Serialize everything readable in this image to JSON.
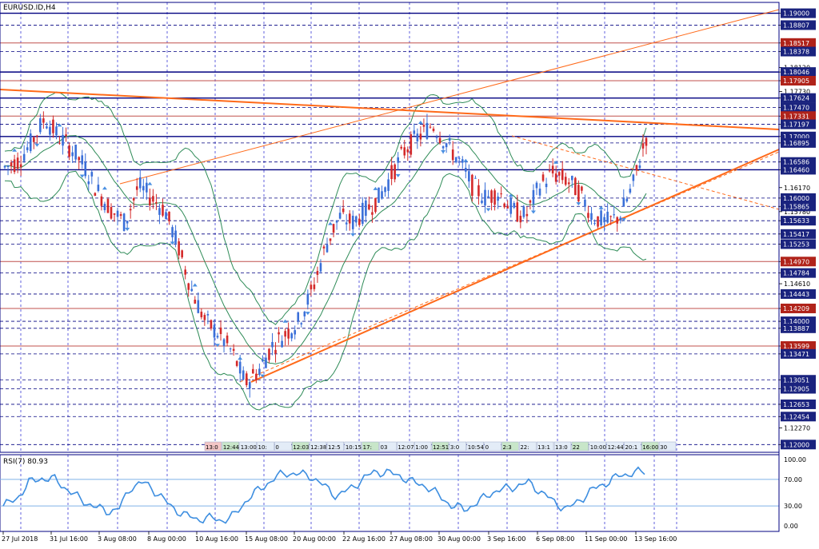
{
  "symbol": "EURUSD.ID,H4",
  "rsi_label": "RSI(7) 80.93",
  "colors": {
    "bull": "#3a6fd8",
    "bear": "#d42a2a",
    "frame": "#000080",
    "grid": "#3b3bd6",
    "band": "#2e8b57",
    "trend": "#ff6a1a",
    "rsi": "#3d8ee0",
    "rsi_level": "#7fb0e6",
    "tag_blue": "#1a237e",
    "tag_red": "#b0231a"
  },
  "price_scale": [
    "1.19000",
    "1.18807",
    "1.18517",
    "1.18378",
    "1.18120",
    "1.18046",
    "1.17905",
    "1.17730",
    "1.17624",
    "1.17470",
    "1.17331",
    "1.17197",
    "1.17000",
    "1.16895",
    "1.16586",
    "1.16460",
    "1.16170",
    "1.16000",
    "1.15865",
    "1.15780",
    "1.15633",
    "1.15417",
    "1.15253",
    "1.14970",
    "1.14784",
    "1.14610",
    "1.14443",
    "1.14209",
    "1.14000",
    "1.13887",
    "1.13599",
    "1.13471",
    "1.13051",
    "1.12905",
    "1.12653",
    "1.12454",
    "1.12270",
    "1.12000"
  ],
  "price_tags": [
    {
      "label": "1.19000",
      "kind": "blue"
    },
    {
      "label": "1.18807",
      "kind": "blue"
    },
    {
      "label": "1.18517",
      "kind": "red"
    },
    {
      "label": "1.18378",
      "kind": "blue"
    },
    {
      "label": "1.18046",
      "kind": "blue"
    },
    {
      "label": "1.17905",
      "kind": "red"
    },
    {
      "label": "1.17624",
      "kind": "blue"
    },
    {
      "label": "1.17470",
      "kind": "blue"
    },
    {
      "label": "1.17331",
      "kind": "red"
    },
    {
      "label": "1.17197",
      "kind": "blue"
    },
    {
      "label": "1.17000",
      "kind": "blue"
    },
    {
      "label": "1.16895",
      "kind": "blue"
    },
    {
      "label": "1.16586",
      "kind": "blue"
    },
    {
      "label": "1.16460",
      "kind": "blue"
    },
    {
      "label": "1.16000",
      "kind": "blue"
    },
    {
      "label": "1.15865",
      "kind": "blue"
    },
    {
      "label": "1.15633",
      "kind": "blue"
    },
    {
      "label": "1.15417",
      "kind": "blue"
    },
    {
      "label": "1.15253",
      "kind": "blue"
    },
    {
      "label": "1.14970",
      "kind": "red"
    },
    {
      "label": "1.14784",
      "kind": "blue"
    },
    {
      "label": "1.14443",
      "kind": "blue"
    },
    {
      "label": "1.14209",
      "kind": "red"
    },
    {
      "label": "1.14000",
      "kind": "blue"
    },
    {
      "label": "1.13887",
      "kind": "blue"
    },
    {
      "label": "1.13599",
      "kind": "red"
    },
    {
      "label": "1.13471",
      "kind": "blue"
    },
    {
      "label": "1.13051",
      "kind": "blue"
    },
    {
      "label": "1.12905",
      "kind": "blue"
    },
    {
      "label": "1.12653",
      "kind": "blue"
    },
    {
      "label": "1.12454",
      "kind": "blue"
    },
    {
      "label": "1.12000",
      "kind": "blue"
    }
  ],
  "rsi_scale": [
    "100.00",
    "70.00",
    "30.00",
    "0.00"
  ],
  "time_labels": [
    "27 Jul 2018",
    "31 Jul 16:00",
    "3 Aug 08:00",
    "8 Aug 00:00",
    "10 Aug 16:00",
    "15 Aug 08:00",
    "20 Aug 00:00",
    "22 Aug 16:00",
    "27 Aug 08:00",
    "30 Aug 00:00",
    "3 Sep 16:00",
    "6 Sep 08:00",
    "11 Sep 00:00",
    "13 Sep 16:00"
  ],
  "time_markers": [
    "13:0",
    "12:44",
    "13:00",
    "10:",
    "0",
    "12:03",
    "12:38",
    "12:5",
    "10:15",
    "17:",
    "03",
    "12:07",
    "1:00",
    "12:51",
    "3:0",
    "10:54",
    "0",
    "2:3",
    "22:",
    "13:1",
    "13:0",
    "22",
    "10:00",
    "12:44",
    "20:1",
    "16:00",
    "30"
  ],
  "chart_data": {
    "type": "candlestick",
    "title": "EURUSD.ID,H4",
    "y_range": [
      1.119,
      1.1915
    ],
    "x_labels": [
      "27 Jul 2018",
      "31 Jul 16:00",
      "3 Aug 08:00",
      "8 Aug 00:00",
      "10 Aug 16:00",
      "15 Aug 08:00",
      "20 Aug 00:00",
      "22 Aug 16:00",
      "27 Aug 08:00",
      "30 Aug 00:00",
      "3 Sep 16:00",
      "6 Sep 08:00",
      "11 Sep 00:00",
      "13 Sep 16:00"
    ],
    "price_path": [
      1.165,
      1.166,
      1.169,
      1.173,
      1.17,
      1.168,
      1.165,
      1.161,
      1.158,
      1.156,
      1.162,
      1.16,
      1.158,
      1.152,
      1.145,
      1.14,
      1.138,
      1.135,
      1.13,
      1.132,
      1.136,
      1.138,
      1.14,
      1.145,
      1.152,
      1.157,
      1.156,
      1.158,
      1.16,
      1.164,
      1.168,
      1.17,
      1.172,
      1.169,
      1.166,
      1.162,
      1.16,
      1.161,
      1.158,
      1.157,
      1.162,
      1.164,
      1.163,
      1.161,
      1.157,
      1.156,
      1.157,
      1.162,
      1.17
    ],
    "horizontal_levels": [
      1.19,
      1.18807,
      1.18517,
      1.18378,
      1.18046,
      1.17905,
      1.17624,
      1.17331,
      1.17,
      1.16895,
      1.16586,
      1.1646,
      1.16,
      1.15865,
      1.15633,
      1.15417,
      1.15253,
      1.1497,
      1.14784,
      1.14443,
      1.14209,
      1.13887,
      1.13599,
      1.13471,
      1.13051,
      1.12905,
      1.12653,
      1.12454,
      1.12
    ],
    "rsi": {
      "period": 7,
      "last": 80.93,
      "levels": [
        70,
        30
      ],
      "range": [
        0,
        100
      ],
      "values": [
        30,
        40,
        65,
        72,
        70,
        55,
        40,
        30,
        22,
        25,
        60,
        65,
        50,
        30,
        18,
        10,
        12,
        8,
        15,
        40,
        55,
        70,
        80,
        78,
        75,
        60,
        45,
        55,
        70,
        82,
        80,
        75,
        65,
        60,
        45,
        30,
        25,
        35,
        50,
        55,
        60,
        65,
        50,
        35,
        25,
        40,
        55,
        65,
        75,
        80,
        81
      ]
    },
    "grid": true
  }
}
